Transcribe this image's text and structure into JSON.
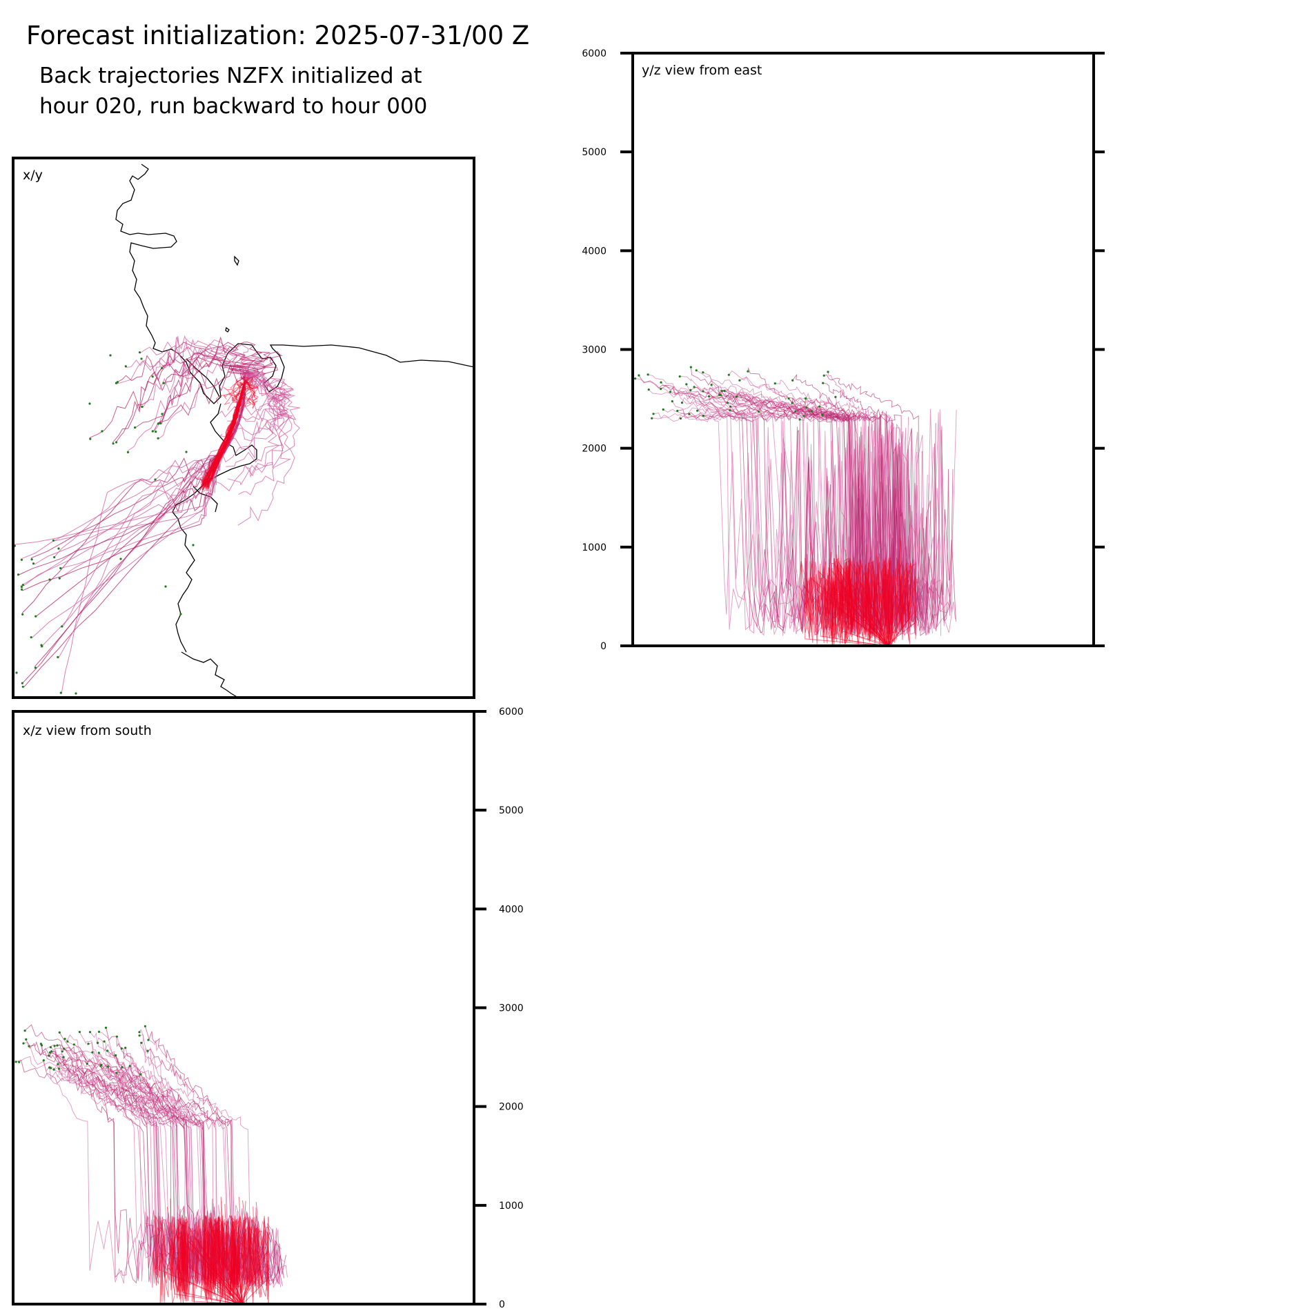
{
  "header": {
    "title": "Forecast initialization: 2025-07-31/00 Z",
    "subtitle_line1": "Back trajectories NZFX initialized at",
    "subtitle_line2": "hour 020, run backward to hour 000"
  },
  "colors": {
    "trajectory_light": "#d0569a",
    "trajectory_dark": "#b0185f",
    "trajectory_recent": "#ee0022",
    "endpoint_marker": "#1f7a1f",
    "coastline": "#000000",
    "frame": "#000000"
  },
  "chart_data": [
    {
      "panel": "x/y",
      "type": "line",
      "label": "x/y",
      "description_of_content": "map view of back trajectories over coastline",
      "axes": {
        "x_ticks": [],
        "y_ticks": []
      },
      "coastline": true,
      "trajectory_count": 60
    },
    {
      "panel": "y/z",
      "type": "line",
      "label": "y/z view from east",
      "ylim": [
        0,
        6000
      ],
      "yticks": [
        0,
        1000,
        2000,
        3000,
        4000,
        5000,
        6000
      ],
      "ytick_side": "left",
      "trajectory_count": 60
    },
    {
      "panel": "x/z",
      "type": "line",
      "label": "x/z view from south",
      "ylim": [
        0,
        6000
      ],
      "yticks": [
        0,
        1000,
        2000,
        3000,
        4000,
        5000,
        6000
      ],
      "ytick_side": "right",
      "trajectory_count": 60
    }
  ]
}
